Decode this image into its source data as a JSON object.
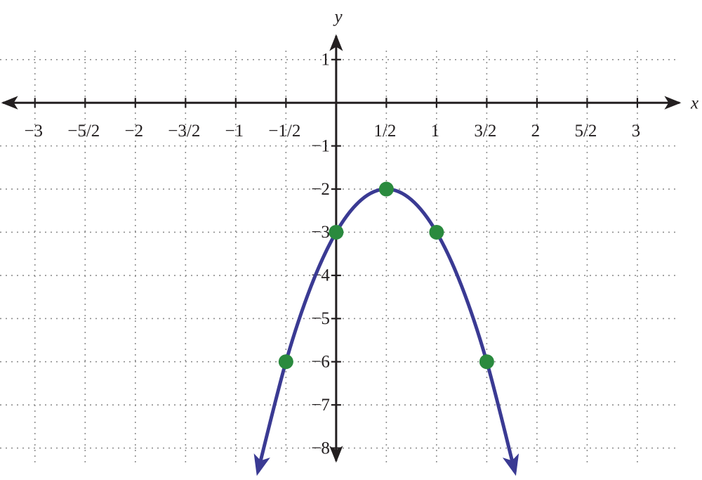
{
  "chart_data": {
    "type": "function_plot",
    "x_label": "x",
    "y_label": "y",
    "xlim": [
      -3.32,
      3.42
    ],
    "ylim": [
      -8.3,
      1.55
    ],
    "xticks": [
      {
        "value": -3,
        "label": "−3"
      },
      {
        "value": -2.5,
        "label": "−5/2"
      },
      {
        "value": -2,
        "label": "−2"
      },
      {
        "value": -1.5,
        "label": "−3/2"
      },
      {
        "value": -1,
        "label": "−1"
      },
      {
        "value": -0.5,
        "label": "−1/2"
      },
      {
        "value": 0.5,
        "label": "1/2"
      },
      1,
      {
        "value": 1.5,
        "label": "3/2"
      },
      2,
      {
        "value": 2.5,
        "label": "5/2"
      },
      3
    ],
    "yticks": [
      1,
      {
        "value": -1,
        "label": "−1"
      },
      {
        "value": -2,
        "label": "−2"
      },
      {
        "value": -3,
        "label": "−3"
      },
      {
        "value": -4,
        "label": "−4"
      },
      {
        "value": -5,
        "label": "−5"
      },
      {
        "value": -6,
        "label": "−6"
      },
      {
        "value": -7,
        "label": "−7"
      },
      {
        "value": -8,
        "label": "−8"
      }
    ],
    "grid": true,
    "series": [
      {
        "type": "line",
        "color": "#3a3a93",
        "x": [
          -0.78,
          -0.5,
          -0.25,
          0,
          0.25,
          0.5,
          0.75,
          1,
          1.25,
          1.5,
          1.78
        ],
        "values": [
          -8.55,
          -6,
          -4.25,
          -3,
          -2.25,
          -2,
          -2.25,
          -3,
          -4.25,
          -6,
          -8.55
        ]
      },
      {
        "type": "scatter",
        "color": "#2a8a3e",
        "x": [
          -0.5,
          0,
          0.5,
          1,
          1.5
        ],
        "values": [
          -6,
          -3,
          -2,
          -3,
          -6
        ]
      }
    ]
  }
}
